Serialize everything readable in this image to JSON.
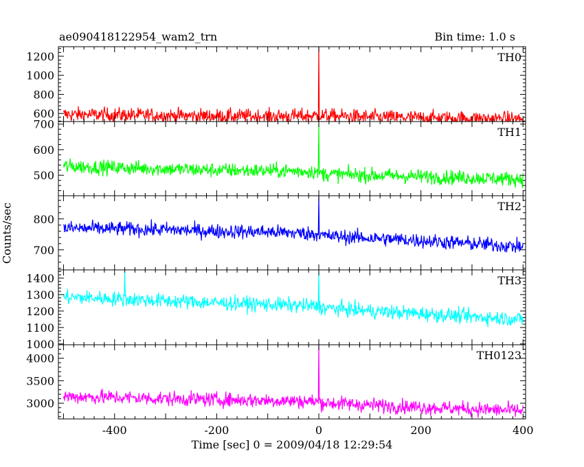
{
  "header": {
    "title": "ae090418122954_wam2_trn",
    "bin_time": "Bin time: 1.0 s"
  },
  "chart_data": {
    "type": "line",
    "xlabel": "Time [sec] 0 = 2009/04/18 12:29:54",
    "ylabel": "Counts/sec",
    "xlim": [
      -510,
      405
    ],
    "xticks": [
      -400,
      -200,
      0,
      200,
      400
    ],
    "x_range": [
      -500,
      400
    ],
    "bin_time_s": 1.0,
    "panels": [
      {
        "name": "TH0",
        "color": "#ff0000",
        "ylim": [
          515,
          1300
        ],
        "yticks": [
          600,
          800,
          1000,
          1200
        ],
        "points": [
          [
            -500,
            590
          ],
          [
            -400,
            585
          ],
          [
            -300,
            578
          ],
          [
            -200,
            572
          ],
          [
            -100,
            570
          ],
          [
            -10,
            575
          ],
          [
            0,
            1300
          ],
          [
            10,
            575
          ],
          [
            100,
            562
          ],
          [
            200,
            555
          ],
          [
            300,
            548
          ],
          [
            400,
            540
          ]
        ]
      },
      {
        "name": "TH1",
        "color": "#00ff00",
        "ylim": [
          420,
          710
        ],
        "yticks": [
          500,
          600,
          700
        ],
        "points": [
          [
            -500,
            535
          ],
          [
            -400,
            530
          ],
          [
            -300,
            525
          ],
          [
            -200,
            520
          ],
          [
            -100,
            518
          ],
          [
            -10,
            515
          ],
          [
            0,
            700
          ],
          [
            10,
            505
          ],
          [
            100,
            500
          ],
          [
            200,
            495
          ],
          [
            300,
            490
          ],
          [
            400,
            485
          ]
        ]
      },
      {
        "name": "TH2",
        "color": "#0000ff",
        "ylim": [
          635,
          875
        ],
        "yticks": [
          700,
          800
        ],
        "points": [
          [
            -500,
            770
          ],
          [
            -400,
            768
          ],
          [
            -300,
            765
          ],
          [
            -200,
            760
          ],
          [
            -100,
            758
          ],
          [
            -10,
            752
          ],
          [
            0,
            875
          ],
          [
            10,
            745
          ],
          [
            100,
            738
          ],
          [
            200,
            730
          ],
          [
            300,
            720
          ],
          [
            400,
            710
          ]
        ]
      },
      {
        "name": "TH3",
        "color": "#00ffff",
        "ylim": [
          995,
          1450
        ],
        "yticks": [
          1000,
          1100,
          1200,
          1300,
          1400
        ],
        "points": [
          [
            -500,
            1285
          ],
          [
            -400,
            1275
          ],
          [
            -380,
            1440
          ],
          [
            -300,
            1262
          ],
          [
            -200,
            1250
          ],
          [
            -100,
            1240
          ],
          [
            -10,
            1230
          ],
          [
            0,
            1440
          ],
          [
            10,
            1220
          ],
          [
            100,
            1200
          ],
          [
            200,
            1185
          ],
          [
            300,
            1165
          ],
          [
            400,
            1150
          ]
        ]
      },
      {
        "name": "TH0123",
        "color": "#ff00ff",
        "ylim": [
          2650,
          4300
        ],
        "yticks": [
          3000,
          3500,
          4000
        ],
        "points": [
          [
            -500,
            3150
          ],
          [
            -400,
            3130
          ],
          [
            -300,
            3100
          ],
          [
            -200,
            3080
          ],
          [
            -100,
            3060
          ],
          [
            -10,
            3040
          ],
          [
            0,
            4300
          ],
          [
            10,
            3010
          ],
          [
            100,
            2960
          ],
          [
            200,
            2910
          ],
          [
            300,
            2870
          ],
          [
            400,
            2830
          ]
        ]
      }
    ]
  }
}
